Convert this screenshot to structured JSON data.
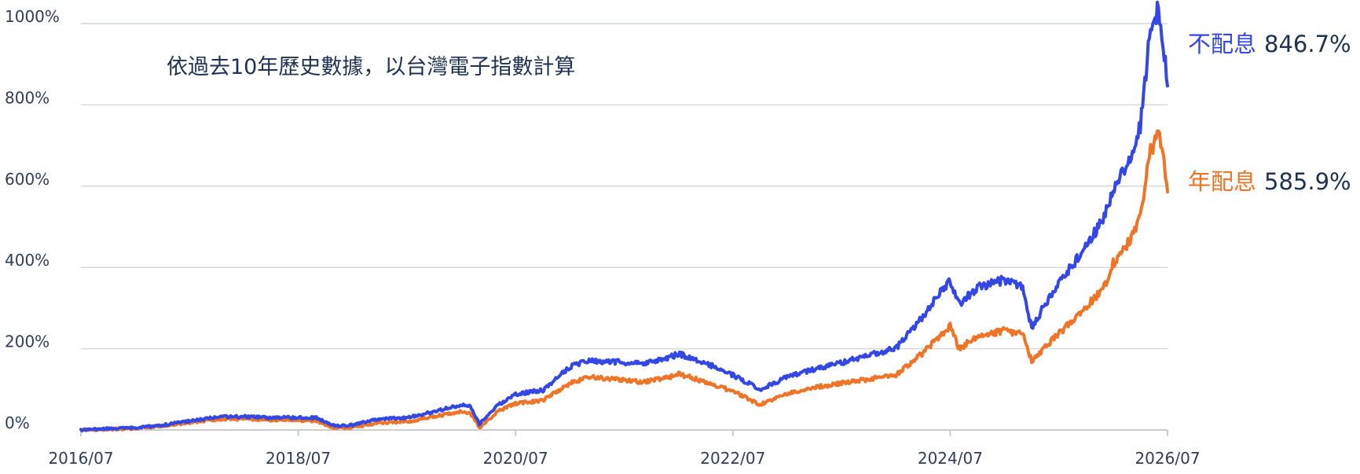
{
  "chart_data": {
    "type": "line",
    "title": "",
    "subtitle": "依過去10年歷史數據，以台灣電子指數計算",
    "xlabel": "",
    "ylabel": "",
    "ylim": [
      0,
      1000
    ],
    "xlim": [
      "2016-07",
      "2026-07"
    ],
    "grid": true,
    "x_ticks": [
      {
        "label": "2016/07",
        "date": "2016-07"
      },
      {
        "label": "2018/07",
        "date": "2018-07"
      },
      {
        "label": "2020/07",
        "date": "2020-07"
      },
      {
        "label": "2022/07",
        "date": "2022-07"
      },
      {
        "label": "2024/07",
        "date": "2024-07"
      },
      {
        "label": "2026/07",
        "date": "2026-07"
      }
    ],
    "y_ticks": [
      {
        "label": "0%",
        "value": 0
      },
      {
        "label": "200%",
        "value": 200
      },
      {
        "label": "400%",
        "value": 400
      },
      {
        "label": "600%",
        "value": 600
      },
      {
        "label": "800%",
        "value": 800
      },
      {
        "label": "1000%",
        "value": 1000
      }
    ],
    "series": [
      {
        "name": "不配息",
        "final_label": "846.7%",
        "color": "#3347e4",
        "points": [
          [
            "2016-07",
            0
          ],
          [
            "2016-10",
            3
          ],
          [
            "2017-01",
            5
          ],
          [
            "2017-04",
            12
          ],
          [
            "2017-07",
            22
          ],
          [
            "2017-10",
            32
          ],
          [
            "2018-01",
            33
          ],
          [
            "2018-04",
            30
          ],
          [
            "2018-07",
            31
          ],
          [
            "2018-09",
            30
          ],
          [
            "2018-11",
            10
          ],
          [
            "2019-01",
            12
          ],
          [
            "2019-04",
            28
          ],
          [
            "2019-07",
            30
          ],
          [
            "2019-10",
            45
          ],
          [
            "2020-01",
            62
          ],
          [
            "2020-02",
            58
          ],
          [
            "2020-03",
            15
          ],
          [
            "2020-05",
            60
          ],
          [
            "2020-07",
            88
          ],
          [
            "2020-10",
            98
          ],
          [
            "2021-01",
            155
          ],
          [
            "2021-03",
            170
          ],
          [
            "2021-06",
            168
          ],
          [
            "2021-09",
            162
          ],
          [
            "2021-12",
            178
          ],
          [
            "2022-01",
            188
          ],
          [
            "2022-04",
            165
          ],
          [
            "2022-07",
            135
          ],
          [
            "2022-10",
            100
          ],
          [
            "2023-01",
            130
          ],
          [
            "2023-04",
            150
          ],
          [
            "2023-07",
            165
          ],
          [
            "2023-10",
            185
          ],
          [
            "2024-01",
            200
          ],
          [
            "2024-04",
            280
          ],
          [
            "2024-07",
            370
          ],
          [
            "2024-08",
            310
          ],
          [
            "2024-10",
            350
          ],
          [
            "2025-01",
            370
          ],
          [
            "2025-03",
            350
          ],
          [
            "2025-04",
            250
          ],
          [
            "2025-06",
            330
          ],
          [
            "2025-09",
            420
          ],
          [
            "2025-12",
            520
          ],
          [
            "2026-01",
            590
          ],
          [
            "2026-03",
            680
          ],
          [
            "2026-04",
            750
          ],
          [
            "2026-05",
            960
          ],
          [
            "2026-06",
            1040
          ],
          [
            "2026-06-20",
            930
          ],
          [
            "2026-07",
            846.7
          ]
        ]
      },
      {
        "name": "年配息",
        "final_label": "585.9%",
        "color": "#f07427",
        "points": [
          [
            "2016-07",
            0
          ],
          [
            "2016-10",
            2
          ],
          [
            "2017-01",
            4
          ],
          [
            "2017-04",
            10
          ],
          [
            "2017-07",
            18
          ],
          [
            "2017-10",
            26
          ],
          [
            "2018-01",
            27
          ],
          [
            "2018-04",
            24
          ],
          [
            "2018-07",
            24
          ],
          [
            "2018-09",
            22
          ],
          [
            "2018-11",
            5
          ],
          [
            "2019-01",
            6
          ],
          [
            "2019-04",
            18
          ],
          [
            "2019-07",
            20
          ],
          [
            "2019-10",
            33
          ],
          [
            "2020-01",
            45
          ],
          [
            "2020-02",
            42
          ],
          [
            "2020-03",
            5
          ],
          [
            "2020-05",
            45
          ],
          [
            "2020-07",
            65
          ],
          [
            "2020-10",
            72
          ],
          [
            "2021-01",
            115
          ],
          [
            "2021-03",
            130
          ],
          [
            "2021-06",
            125
          ],
          [
            "2021-09",
            118
          ],
          [
            "2021-12",
            130
          ],
          [
            "2022-01",
            138
          ],
          [
            "2022-04",
            118
          ],
          [
            "2022-07",
            95
          ],
          [
            "2022-10",
            62
          ],
          [
            "2023-01",
            90
          ],
          [
            "2023-04",
            105
          ],
          [
            "2023-07",
            115
          ],
          [
            "2023-10",
            125
          ],
          [
            "2024-01",
            135
          ],
          [
            "2024-04",
            190
          ],
          [
            "2024-07",
            255
          ],
          [
            "2024-08",
            200
          ],
          [
            "2024-10",
            230
          ],
          [
            "2025-01",
            245
          ],
          [
            "2025-03",
            235
          ],
          [
            "2025-04",
            170
          ],
          [
            "2025-06",
            215
          ],
          [
            "2025-09",
            280
          ],
          [
            "2025-12",
            350
          ],
          [
            "2026-01",
            410
          ],
          [
            "2026-03",
            470
          ],
          [
            "2026-04",
            520
          ],
          [
            "2026-05",
            680
          ],
          [
            "2026-06",
            730
          ],
          [
            "2026-06-20",
            650
          ],
          [
            "2026-07",
            585.9
          ]
        ]
      }
    ]
  }
}
